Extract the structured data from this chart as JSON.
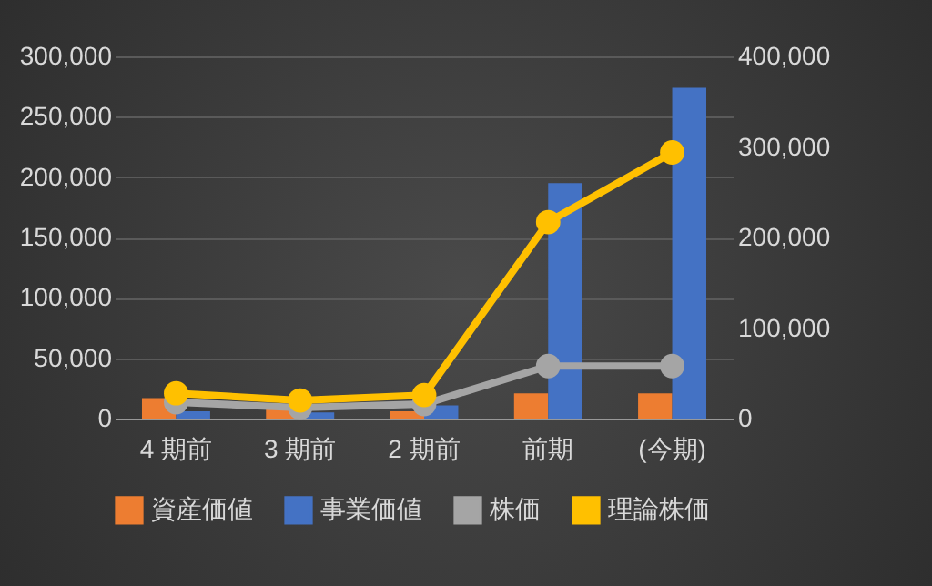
{
  "chart_data": {
    "type": "bar",
    "categories": [
      "4 期前",
      "3 期前",
      "2 期前",
      "前期",
      "(今期)"
    ],
    "series": [
      {
        "name": "資産価値",
        "color": "#ed7d31",
        "values": [
          17000,
          8000,
          6000,
          21000,
          21000
        ]
      },
      {
        "name": "事業価値",
        "color": "#4472c4",
        "values": [
          6000,
          5000,
          11000,
          195000,
          274000
        ]
      },
      {
        "name": "株価",
        "type": "line",
        "axis": "y2",
        "color": "#a5a5a5",
        "values": [
          18000,
          12000,
          16000,
          58000,
          58000
        ]
      },
      {
        "name": "理論株価",
        "type": "line",
        "axis": "y2",
        "color": "#ffc000",
        "values": [
          28000,
          20000,
          26000,
          217000,
          294000
        ]
      }
    ],
    "ylim": [
      0,
      300000
    ],
    "yticks": [
      0,
      {
        "value": 50000,
        "label": "50,000"
      },
      {
        "value": 100000,
        "label": "100,000"
      },
      {
        "value": 150000,
        "label": "150,000"
      },
      {
        "value": 200000,
        "label": "200,000"
      },
      {
        "value": 250000,
        "label": "250,000"
      },
      {
        "value": 300000,
        "label": "300,000"
      }
    ],
    "y2lim": [
      0,
      400000
    ],
    "y2ticks": [
      0,
      {
        "value": 100000,
        "label": "100,000"
      },
      {
        "value": 200000,
        "label": "200,000"
      },
      {
        "value": 300000,
        "label": "300,000"
      },
      {
        "value": 400000,
        "label": "400,000"
      }
    ],
    "grid": "y",
    "legend": "bottom",
    "marker": "circle"
  }
}
